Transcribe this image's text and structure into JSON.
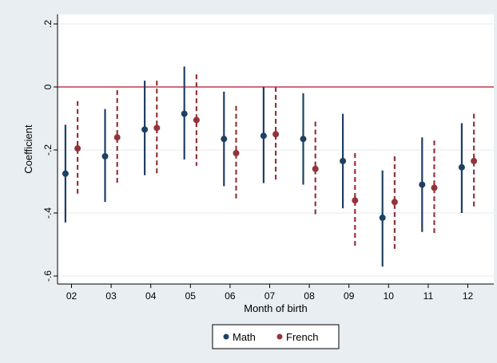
{
  "chart_data": {
    "type": "scatter",
    "subtype": "coefficient plot with 95% confidence intervals",
    "title": "",
    "xlabel": "Month of birth",
    "ylabel": "Coefficient",
    "categories": [
      "02",
      "03",
      "04",
      "05",
      "06",
      "07",
      "08",
      "09",
      "10",
      "11",
      "12"
    ],
    "yticks": [
      ".2",
      "0",
      "-.2",
      "-.4",
      "-.6"
    ],
    "ytick_values": [
      0.2,
      0,
      -0.2,
      -0.4,
      -0.6
    ],
    "ylim": [
      -0.62,
      0.24
    ],
    "reference_line": {
      "y": 0,
      "color": "#c0394f"
    },
    "grid": true,
    "legend_position": "bottom",
    "series": [
      {
        "name": "Math",
        "color": "#1f3f63",
        "ci_style": "solid",
        "values": [
          -0.275,
          -0.22,
          -0.135,
          -0.085,
          -0.165,
          -0.155,
          -0.165,
          -0.235,
          -0.415,
          -0.31,
          -0.255
        ],
        "ci_low": [
          -0.43,
          -0.365,
          -0.28,
          -0.23,
          -0.315,
          -0.305,
          -0.31,
          -0.385,
          -0.57,
          -0.46,
          -0.4
        ],
        "ci_high": [
          -0.12,
          -0.07,
          0.02,
          0.065,
          -0.015,
          0.0,
          -0.02,
          -0.085,
          -0.265,
          -0.16,
          -0.115
        ]
      },
      {
        "name": "French",
        "color": "#93343a",
        "ci_style": "dashed",
        "values": [
          -0.195,
          -0.16,
          -0.13,
          -0.105,
          -0.21,
          -0.15,
          -0.26,
          -0.36,
          -0.365,
          -0.32,
          -0.235
        ],
        "ci_low": [
          -0.345,
          -0.31,
          -0.28,
          -0.25,
          -0.355,
          -0.295,
          -0.41,
          -0.51,
          -0.515,
          -0.465,
          -0.38
        ],
        "ci_high": [
          -0.045,
          -0.01,
          0.02,
          0.04,
          -0.06,
          0.0,
          -0.11,
          -0.21,
          -0.22,
          -0.17,
          -0.085
        ]
      }
    ]
  }
}
